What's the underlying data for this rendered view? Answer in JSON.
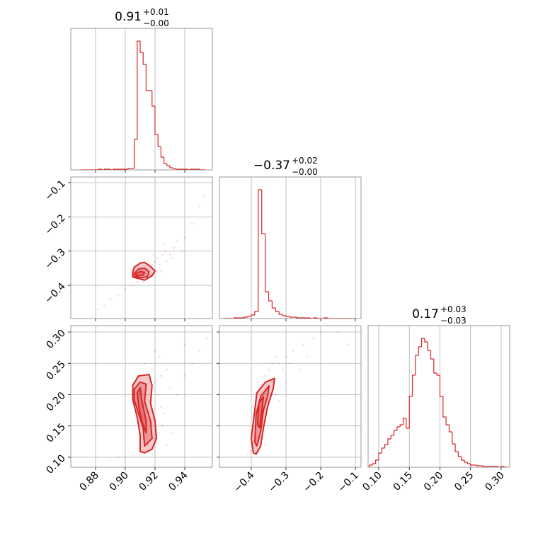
{
  "chart_data": [
    {
      "type": "histogram",
      "title": "0.91",
      "title_upper": "+0.01",
      "title_lower": "−0.00",
      "color": "#d62728",
      "bins": [
        0.87,
        0.872,
        0.874,
        0.876,
        0.878,
        0.88,
        0.882,
        0.884,
        0.886,
        0.888,
        0.89,
        0.892,
        0.894,
        0.896,
        0.898,
        0.9,
        0.902,
        0.904,
        0.906,
        0.908,
        0.91,
        0.912,
        0.914,
        0.916,
        0.918,
        0.92,
        0.922,
        0.924,
        0.926,
        0.928,
        0.93,
        0.932,
        0.934,
        0.936,
        0.938,
        0.94,
        0.942,
        0.944,
        0.946,
        0.948,
        0.95,
        0.952,
        0.954
      ],
      "counts": [
        0,
        0,
        0,
        0,
        0,
        0,
        1,
        0,
        1,
        1,
        0,
        1,
        1,
        1,
        1,
        1,
        2,
        2,
        43,
        182,
        166,
        149,
        112,
        112,
        90,
        50,
        33,
        18,
        9,
        6,
        3,
        2,
        1,
        1,
        1,
        1,
        0,
        1,
        1,
        1,
        0,
        0
      ],
      "xlim": [
        0.8633,
        0.9586
      ],
      "ylim": [
        0,
        200
      ],
      "xticks": [
        0.88,
        {
          "value": 0.9,
          "label": "0.90"
        },
        0.92,
        0.94
      ],
      "xtick_labels": false,
      "grid": true
    },
    {
      "type": "scatter",
      "color": "#d62728",
      "x": [
        0.915,
        0.918,
        0.92,
        0.922,
        0.925,
        0.923,
        0.927,
        0.93,
        0.928,
        0.921,
        0.917,
        0.912,
        0.908,
        0.904,
        0.9,
        0.895,
        0.89,
        0.886,
        0.882,
        0.933,
        0.935,
        0.94,
        0.945,
        0.95,
        0.953,
        0.938,
        0.926,
        0.919,
        0.924,
        0.931
      ],
      "y": [
        -0.35,
        -0.34,
        -0.33,
        -0.32,
        -0.31,
        -0.34,
        -0.3,
        -0.31,
        -0.33,
        -0.36,
        -0.37,
        -0.39,
        -0.39,
        -0.4,
        -0.41,
        -0.43,
        -0.44,
        -0.46,
        -0.47,
        -0.29,
        -0.27,
        -0.26,
        -0.22,
        -0.17,
        -0.14,
        -0.3,
        -0.28,
        -0.31,
        -0.36,
        -0.32
      ],
      "contours": [
        {
          "x": [
            0.905,
            0.906,
            0.91,
            0.913,
            0.917,
            0.92,
            0.918,
            0.913,
            0.909,
            0.905
          ],
          "y": [
            -0.362,
            -0.347,
            -0.335,
            -0.333,
            -0.345,
            -0.358,
            -0.372,
            -0.385,
            -0.38,
            -0.376
          ]
        },
        {
          "x": [
            0.906,
            0.909,
            0.913,
            0.916,
            0.915,
            0.91,
            0.906
          ],
          "y": [
            -0.365,
            -0.352,
            -0.35,
            -0.36,
            -0.375,
            -0.378,
            -0.372
          ]
        },
        {
          "x": [
            0.907,
            0.91,
            0.913,
            0.912,
            0.908
          ],
          "y": [
            -0.366,
            -0.36,
            -0.362,
            -0.37,
            -0.372
          ]
        }
      ],
      "xlim": [
        0.8633,
        0.9586
      ],
      "ylim": [
        -0.497,
        -0.0835
      ],
      "xticks": [
        0.88,
        {
          "value": 0.9,
          "label": "0.90"
        },
        0.92,
        0.94
      ],
      "yticks": [
        {
          "value": -0.4,
          "label": "−0.4"
        },
        {
          "value": -0.3,
          "label": "−0.3"
        },
        {
          "value": -0.2,
          "label": "−0.2"
        },
        {
          "value": -0.1,
          "label": "−0.1"
        }
      ],
      "xtick_labels": false,
      "ytick_labels": true,
      "grid": true
    },
    {
      "type": "histogram",
      "title": "−0.37",
      "title_upper": "+0.02",
      "title_lower": "−0.00",
      "color": "#d62728",
      "bins": [
        -0.48,
        -0.47,
        -0.46,
        -0.45,
        -0.44,
        -0.43,
        -0.42,
        -0.41,
        -0.4,
        -0.39,
        -0.38,
        -0.37,
        -0.36,
        -0.35,
        -0.34,
        -0.33,
        -0.32,
        -0.31,
        -0.3,
        -0.29,
        -0.28,
        -0.27,
        -0.26,
        -0.25,
        -0.24,
        -0.23,
        -0.22,
        -0.21,
        -0.2,
        -0.19,
        -0.18,
        -0.17,
        -0.16,
        -0.15,
        -0.14,
        -0.13,
        -0.12,
        -0.11,
        -0.1
      ],
      "counts": [
        0,
        0,
        0,
        1,
        1,
        1,
        2,
        3,
        5,
        10,
        182,
        120,
        38,
        25,
        15,
        10,
        6,
        4,
        3,
        2,
        2,
        1,
        1,
        1,
        1,
        0,
        1,
        0,
        0,
        1,
        0,
        0,
        0,
        0,
        0,
        0,
        0,
        0
      ],
      "xlim": [
        -0.4918,
        -0.0837
      ],
      "ylim": [
        0,
        200
      ],
      "xticks": [
        {
          "value": -0.4,
          "label": "−0.4"
        },
        {
          "value": -0.3,
          "label": "−0.3"
        },
        {
          "value": -0.2,
          "label": "−0.2"
        },
        {
          "value": -0.1,
          "label": "−0.1"
        }
      ],
      "xtick_labels": false,
      "grid": true
    },
    {
      "type": "scatter",
      "color": "#d62728",
      "x": [
        0.918,
        0.92,
        0.922,
        0.924,
        0.921,
        0.925,
        0.919,
        0.915,
        0.91,
        0.905,
        0.9,
        0.895,
        0.89,
        0.923,
        0.928,
        0.93,
        0.935,
        0.94,
        0.945,
        0.95,
        0.955,
        0.926,
        0.92,
        0.913,
        0.916,
        0.932,
        0.928,
        0.918,
        0.94,
        0.924
      ],
      "y": [
        0.24,
        0.22,
        0.2,
        0.18,
        0.16,
        0.15,
        0.13,
        0.12,
        0.11,
        0.105,
        0.1,
        0.1,
        0.095,
        0.26,
        0.24,
        0.21,
        0.2,
        0.23,
        0.25,
        0.27,
        0.29,
        0.17,
        0.27,
        0.25,
        0.19,
        0.14,
        0.12,
        0.105,
        0.28,
        0.23
      ],
      "contours": [
        {
          "x": [
            0.905,
            0.909,
            0.916,
            0.918,
            0.917,
            0.92,
            0.921,
            0.918,
            0.913,
            0.91,
            0.91,
            0.908,
            0.905
          ],
          "y": [
            0.215,
            0.23,
            0.232,
            0.215,
            0.186,
            0.158,
            0.13,
            0.113,
            0.107,
            0.109,
            0.135,
            0.164,
            0.192
          ]
        },
        {
          "x": [
            0.906,
            0.91,
            0.914,
            0.913,
            0.917,
            0.918,
            0.913,
            0.912,
            0.909,
            0.906
          ],
          "y": [
            0.209,
            0.22,
            0.217,
            0.189,
            0.158,
            0.13,
            0.118,
            0.147,
            0.169,
            0.192
          ]
        },
        {
          "x": [
            0.908,
            0.91,
            0.911,
            0.914,
            0.914,
            0.911,
            0.909
          ],
          "y": [
            0.203,
            0.211,
            0.192,
            0.158,
            0.139,
            0.158,
            0.181
          ]
        }
      ],
      "xlim": [
        0.8633,
        0.9586
      ],
      "ylim": [
        0.0841,
        0.3102
      ],
      "xticks": [
        0.88,
        {
          "value": 0.9,
          "label": "0.90"
        },
        0.92,
        0.94
      ],
      "yticks": [
        {
          "value": 0.1,
          "label": "0.10"
        },
        0.15,
        {
          "value": 0.2,
          "label": "0.20"
        },
        0.25,
        {
          "value": 0.3,
          "label": "0.30"
        }
      ],
      "xtick_labels": true,
      "ytick_labels": true,
      "grid": true
    },
    {
      "type": "scatter",
      "color": "#d62728",
      "x": [
        -0.36,
        -0.35,
        -0.34,
        -0.33,
        -0.32,
        -0.3,
        -0.28,
        -0.25,
        -0.22,
        -0.2,
        -0.37,
        -0.36,
        -0.38,
        -0.39,
        -0.4,
        -0.41,
        -0.35,
        -0.34,
        -0.31,
        -0.29,
        -0.37,
        -0.33,
        -0.26,
        -0.15,
        -0.12,
        -0.38,
        -0.36,
        -0.32,
        -0.3,
        -0.24
      ],
      "y": [
        0.23,
        0.24,
        0.25,
        0.26,
        0.25,
        0.26,
        0.27,
        0.28,
        0.29,
        0.3,
        0.2,
        0.18,
        0.16,
        0.13,
        0.11,
        0.105,
        0.21,
        0.22,
        0.24,
        0.25,
        0.15,
        0.2,
        0.24,
        0.3,
        0.28,
        0.22,
        0.12,
        0.19,
        0.22,
        0.26
      ],
      "contours": [
        {
          "x": [
            -0.394,
            -0.4,
            -0.39,
            -0.384,
            -0.359,
            -0.333,
            -0.337,
            -0.353,
            -0.365,
            -0.373,
            -0.386
          ],
          "y": [
            0.107,
            0.13,
            0.175,
            0.203,
            0.22,
            0.226,
            0.209,
            0.181,
            0.147,
            0.118,
            0.105
          ]
        },
        {
          "x": [
            -0.39,
            -0.386,
            -0.373,
            -0.349,
            -0.353,
            -0.365,
            -0.373,
            -0.384
          ],
          "y": [
            0.124,
            0.169,
            0.197,
            0.214,
            0.197,
            0.175,
            0.141,
            0.118
          ]
        },
        {
          "x": [
            -0.382,
            -0.378,
            -0.365,
            -0.369,
            -0.376
          ],
          "y": [
            0.152,
            0.186,
            0.197,
            0.175,
            0.147
          ]
        }
      ],
      "xlim": [
        -0.4918,
        -0.0837
      ],
      "ylim": [
        0.0841,
        0.3102
      ],
      "xticks": [
        {
          "value": -0.4,
          "label": "−0.4"
        },
        {
          "value": -0.3,
          "label": "−0.3"
        },
        {
          "value": -0.2,
          "label": "−0.2"
        },
        {
          "value": -0.1,
          "label": "−0.1"
        }
      ],
      "yticks": [
        {
          "value": 0.1,
          "label": "0.10"
        },
        0.15,
        {
          "value": 0.2,
          "label": "0.20"
        },
        0.25,
        {
          "value": 0.3,
          "label": "0.30"
        }
      ],
      "xtick_labels": true,
      "ytick_labels": false,
      "grid": true
    },
    {
      "type": "histogram",
      "title": "0.17",
      "title_upper": "+0.03",
      "title_lower": "−0.03",
      "color": "#d62728",
      "bins": [
        0.085,
        0.09,
        0.095,
        0.1,
        0.105,
        0.11,
        0.115,
        0.12,
        0.125,
        0.13,
        0.135,
        0.14,
        0.145,
        0.15,
        0.155,
        0.16,
        0.165,
        0.17,
        0.175,
        0.18,
        0.185,
        0.19,
        0.195,
        0.2,
        0.205,
        0.21,
        0.215,
        0.22,
        0.225,
        0.23,
        0.235,
        0.24,
        0.245,
        0.25,
        0.255,
        0.26,
        0.265,
        0.27,
        0.275,
        0.28,
        0.285,
        0.29,
        0.295,
        0.3,
        0.305,
        0.31
      ],
      "counts": [
        3,
        5,
        10,
        20,
        27,
        32,
        40,
        45,
        52,
        57,
        60,
        69,
        55,
        100,
        130,
        158,
        170,
        182,
        177,
        165,
        153,
        133,
        130,
        100,
        71,
        60,
        50,
        33,
        22,
        15,
        10,
        7,
        5,
        3,
        3,
        2,
        2,
        1,
        1,
        1,
        1,
        1,
        0,
        1,
        0
      ],
      "xlim": [
        0.0827,
        0.3139
      ],
      "ylim": [
        0,
        200
      ],
      "xticks": [
        {
          "value": 0.1,
          "label": "0.10"
        },
        0.15,
        {
          "value": 0.2,
          "label": "0.20"
        },
        0.25,
        {
          "value": 0.3,
          "label": "0.30"
        }
      ],
      "xtick_labels": true,
      "grid": true
    }
  ]
}
